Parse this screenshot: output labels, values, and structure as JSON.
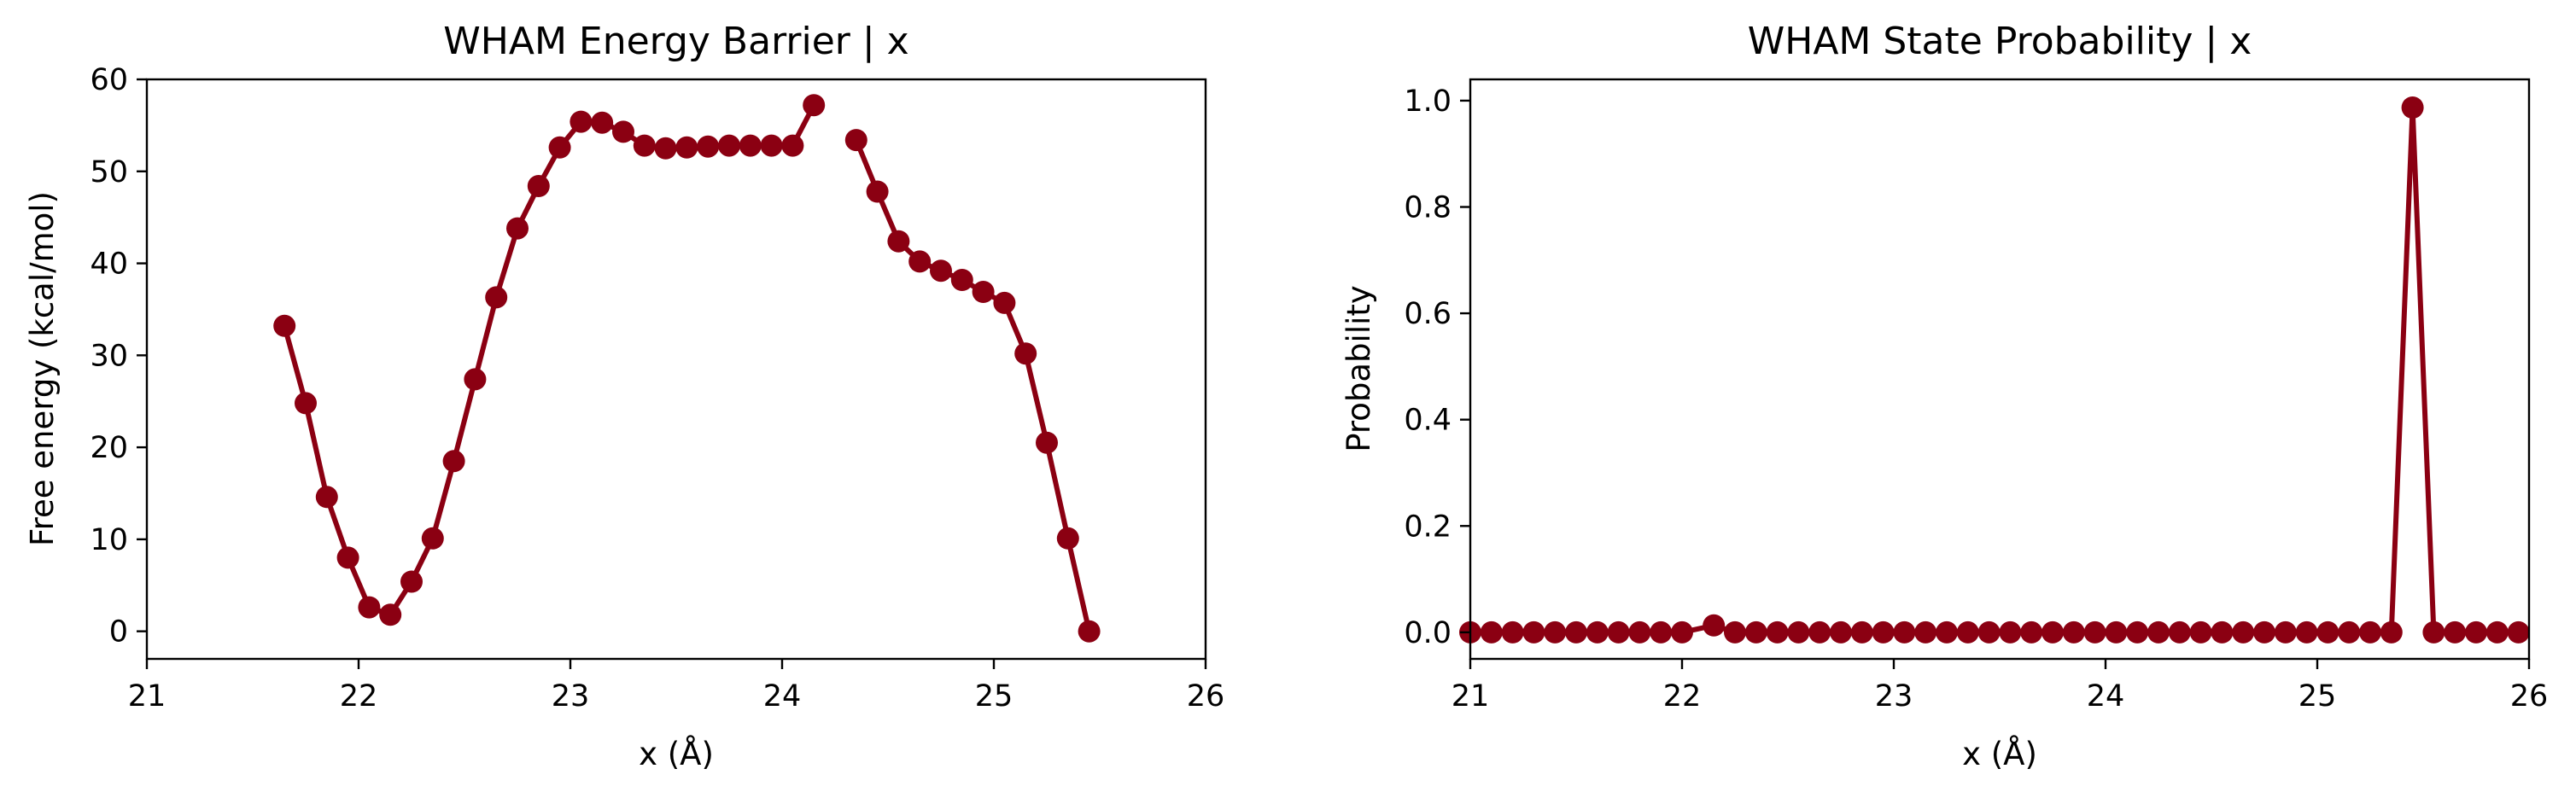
{
  "chart_data": [
    {
      "type": "line",
      "title": "WHAM Energy Barrier | x",
      "xlabel": "x (Å)",
      "ylabel": "Free energy (kcal/mol)",
      "xlim": [
        21,
        26
      ],
      "ylim": [
        -3,
        60
      ],
      "xticks": [
        21,
        22,
        23,
        24,
        25,
        26
      ],
      "yticks": [
        0,
        10,
        20,
        30,
        40,
        50,
        60
      ],
      "marker": "circle",
      "color": "#8b0012",
      "segments": [
        {
          "x": [
            21.65,
            21.75,
            21.85,
            21.95,
            22.05,
            22.15,
            22.25,
            22.35,
            22.45,
            22.55,
            22.65,
            22.75,
            22.85,
            22.95,
            23.05,
            23.15,
            23.25,
            23.35,
            23.45,
            23.55,
            23.65,
            23.75,
            23.85,
            23.95,
            24.05,
            24.15
          ],
          "y": [
            33.2,
            24.8,
            14.6,
            8.0,
            2.6,
            1.8,
            5.4,
            10.1,
            18.5,
            27.4,
            36.3,
            43.8,
            48.4,
            52.6,
            55.4,
            55.3,
            54.3,
            52.8,
            52.5,
            52.6,
            52.7,
            52.8,
            52.8,
            52.8,
            52.8,
            57.2
          ]
        },
        {
          "x": [
            24.35,
            24.45,
            24.55,
            24.65,
            24.75,
            24.85,
            24.95,
            25.05,
            25.15,
            25.25,
            25.35,
            25.45
          ],
          "y": [
            53.4,
            47.8,
            42.4,
            40.2,
            39.2,
            38.2,
            36.9,
            35.7,
            30.2,
            20.5,
            10.1,
            0.0
          ]
        }
      ]
    },
    {
      "type": "line",
      "title": "WHAM State Probability | x",
      "xlabel": "x (Å)",
      "ylabel": "Probability",
      "xlim": [
        21,
        26
      ],
      "ylim": [
        -0.05,
        1.04
      ],
      "xticks": [
        21,
        22,
        23,
        24,
        25,
        26
      ],
      "yticks": [
        0.0,
        0.2,
        0.4,
        0.6,
        0.8,
        1.0
      ],
      "tick_format": "0.0",
      "marker": "circle",
      "color": "#8b0012",
      "segments": [
        {
          "x": [
            21.0,
            21.1,
            21.2,
            21.3,
            21.4,
            21.5,
            21.6,
            21.7,
            21.8,
            21.9,
            22.0,
            22.15,
            22.25,
            22.35,
            22.45,
            22.55,
            22.65,
            22.75,
            22.85,
            22.95,
            23.05,
            23.15,
            23.25,
            23.35,
            23.45,
            23.55,
            23.65,
            23.75,
            23.85,
            23.95,
            24.05,
            24.15,
            24.25,
            24.35,
            24.45,
            24.55,
            24.65,
            24.75,
            24.85,
            24.95,
            25.05,
            25.15,
            25.25,
            25.35,
            25.45,
            25.55,
            25.65,
            25.75,
            25.85,
            25.95
          ],
          "y": [
            0,
            0,
            0,
            0,
            0,
            0,
            0,
            0,
            0,
            0,
            0,
            0.013,
            0,
            0,
            0,
            0,
            0,
            0,
            0,
            0,
            0,
            0,
            0,
            0,
            0,
            0,
            0,
            0,
            0,
            0,
            0,
            0,
            0,
            0,
            0,
            0,
            0,
            0,
            0,
            0,
            0,
            0,
            0,
            0,
            0.987,
            0,
            0,
            0,
            0,
            0
          ]
        }
      ]
    }
  ]
}
